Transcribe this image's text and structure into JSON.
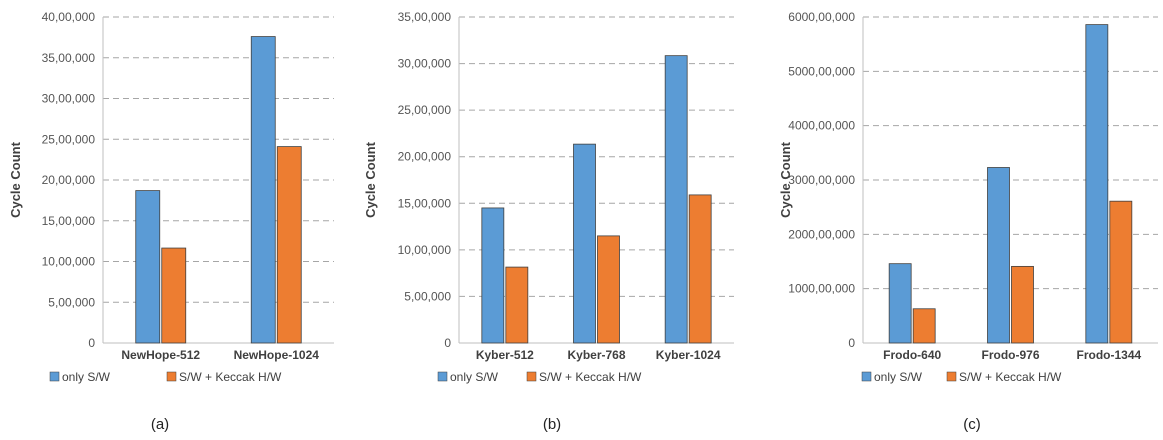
{
  "colors": {
    "series0": "#5b9bd5",
    "series1": "#ed7d31",
    "bar_stroke": "#404040"
  },
  "chart_data": [
    {
      "type": "bar",
      "caption": "(a)",
      "categories": [
        "NewHope-512",
        "NewHope-1024"
      ],
      "series": [
        {
          "name": "only S/W",
          "values": [
            1870000,
            3760000
          ]
        },
        {
          "name": "S/W + Keccak H/W",
          "values": [
            1165000,
            2410000
          ]
        }
      ],
      "ylabel": "Cycle Count",
      "ylim": [
        0,
        4000000
      ],
      "yticks": [
        0,
        500000,
        1000000,
        1500000,
        2000000,
        2500000,
        3000000,
        3500000,
        4000000
      ],
      "ytick_labels": [
        "0",
        "5,00,000",
        "10,00,000",
        "15,00,000",
        "20,00,000",
        "25,00,000",
        "30,00,000",
        "35,00,000",
        "40,00,000"
      ],
      "grid": true,
      "legend": "bottom-left"
    },
    {
      "type": "bar",
      "caption": "(b)",
      "categories": [
        "Kyber-512",
        "Kyber-768",
        "Kyber-1024"
      ],
      "series": [
        {
          "name": "only S/W",
          "values": [
            1450000,
            2135000,
            3085000
          ]
        },
        {
          "name": "S/W + Keccak H/W",
          "values": [
            815000,
            1150000,
            1590000
          ]
        }
      ],
      "ylabel": "Cycle Count",
      "ylim": [
        0,
        3500000
      ],
      "yticks": [
        0,
        500000,
        1000000,
        1500000,
        2000000,
        2500000,
        3000000,
        3500000
      ],
      "ytick_labels": [
        "0",
        "5,00,000",
        "10,00,000",
        "15,00,000",
        "20,00,000",
        "25,00,000",
        "30,00,000",
        "35,00,000"
      ],
      "grid": true,
      "legend": "bottom-left"
    },
    {
      "type": "bar",
      "caption": "(c)",
      "categories": [
        "Frodo-640",
        "Frodo-976",
        "Frodo-1344"
      ],
      "series": [
        {
          "name": "only S/W",
          "values": [
            146000000,
            323000000,
            586000000
          ]
        },
        {
          "name": "S/W + Keccak H/W",
          "values": [
            63000000,
            141000000,
            261000000
          ]
        }
      ],
      "ylabel": "Cycle Count",
      "ylim": [
        0,
        600000000
      ],
      "yticks": [
        0,
        100000000,
        200000000,
        300000000,
        400000000,
        500000000,
        600000000
      ],
      "ytick_labels": [
        "0",
        "1000,00,000",
        "2000,00,000",
        "3000,00,000",
        "4000,00,000",
        "5000,00,000",
        "6000,00,000"
      ],
      "grid": true,
      "legend": "bottom-left"
    }
  ]
}
